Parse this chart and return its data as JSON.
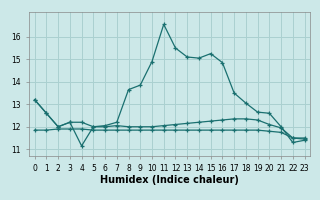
{
  "xlabel": "Humidex (Indice chaleur)",
  "bg_color": "#cce8e8",
  "grid_color": "#aad0d0",
  "line_color": "#1a7070",
  "x_ticks": [
    0,
    1,
    2,
    3,
    4,
    5,
    6,
    7,
    8,
    9,
    10,
    11,
    12,
    13,
    14,
    15,
    16,
    17,
    18,
    19,
    20,
    21,
    22,
    23
  ],
  "y_ticks": [
    11,
    12,
    13,
    14,
    15,
    16
  ],
  "ylim": [
    10.7,
    17.1
  ],
  "xlim": [
    -0.5,
    23.5
  ],
  "line_main": [
    13.2,
    12.6,
    12.0,
    12.2,
    11.15,
    12.0,
    12.05,
    12.2,
    13.65,
    13.85,
    14.9,
    16.55,
    15.5,
    15.1,
    15.05,
    15.25,
    14.85,
    13.5,
    13.05,
    12.65,
    12.6,
    12.0,
    11.3,
    11.4
  ],
  "line_low1": [
    13.2,
    12.6,
    12.0,
    12.2,
    12.2,
    12.0,
    12.0,
    12.05,
    12.0,
    12.0,
    12.0,
    12.05,
    12.1,
    12.15,
    12.2,
    12.25,
    12.3,
    12.35,
    12.35,
    12.3,
    12.1,
    11.95,
    11.5,
    11.5
  ],
  "line_low2": [
    11.85,
    11.85,
    11.9,
    11.9,
    11.9,
    11.85,
    11.85,
    11.85,
    11.85,
    11.85,
    11.85,
    11.85,
    11.85,
    11.85,
    11.85,
    11.85,
    11.85,
    11.85,
    11.85,
    11.85,
    11.8,
    11.75,
    11.5,
    11.45
  ],
  "tick_fontsize": 5.5,
  "xlabel_fontsize": 7
}
